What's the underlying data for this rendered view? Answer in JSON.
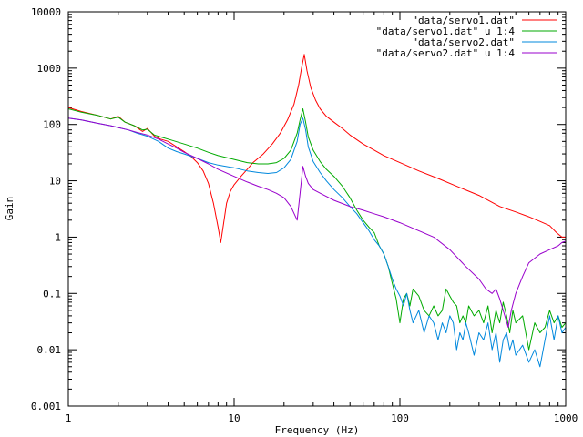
{
  "chart_data": {
    "type": "line",
    "title": "",
    "xlabel": "Frequency (Hz)",
    "ylabel": "Gain",
    "x_scale": "log",
    "y_scale": "log",
    "xlim": [
      1,
      1000
    ],
    "ylim": [
      0.001,
      10000
    ],
    "grid": false,
    "legend_position": "top-right",
    "x_ticks": [
      {
        "value": 1,
        "label": "1"
      },
      {
        "value": 10,
        "label": "10"
      },
      {
        "value": 100,
        "label": "100"
      },
      {
        "value": 1000,
        "label": "1000"
      }
    ],
    "y_ticks": [
      {
        "value": 0.001,
        "label": "0.001"
      },
      {
        "value": 0.01,
        "label": "0.01"
      },
      {
        "value": 0.1,
        "label": "0.1"
      },
      {
        "value": 1,
        "label": "1"
      },
      {
        "value": 10,
        "label": "10"
      },
      {
        "value": 100,
        "label": "100"
      },
      {
        "value": 1000,
        "label": "1000"
      },
      {
        "value": 10000,
        "label": "10000"
      }
    ],
    "series": [
      {
        "name": "\"data/servo1.dat\"",
        "color": "#ff0000",
        "points": [
          [
            1,
            200
          ],
          [
            1.2,
            170
          ],
          [
            1.5,
            145
          ],
          [
            1.8,
            125
          ],
          [
            2,
            140
          ],
          [
            2.2,
            110
          ],
          [
            2.5,
            95
          ],
          [
            2.8,
            75
          ],
          [
            3,
            85
          ],
          [
            3.3,
            62
          ],
          [
            3.6,
            55
          ],
          [
            4,
            50
          ],
          [
            4.5,
            40
          ],
          [
            5,
            33
          ],
          [
            5.5,
            27
          ],
          [
            6,
            21
          ],
          [
            6.5,
            15
          ],
          [
            7,
            9
          ],
          [
            7.5,
            4
          ],
          [
            8,
            1.5
          ],
          [
            8.3,
            0.8
          ],
          [
            8.6,
            1.6
          ],
          [
            9,
            4
          ],
          [
            9.5,
            6.5
          ],
          [
            10,
            8.5
          ],
          [
            11,
            12
          ],
          [
            12,
            16
          ],
          [
            13,
            21
          ],
          [
            15,
            30
          ],
          [
            17,
            45
          ],
          [
            19,
            70
          ],
          [
            21,
            120
          ],
          [
            23,
            230
          ],
          [
            24.5,
            500
          ],
          [
            25.5,
            1000
          ],
          [
            26.5,
            1750
          ],
          [
            27.5,
            900
          ],
          [
            29,
            450
          ],
          [
            31,
            270
          ],
          [
            33,
            190
          ],
          [
            36,
            140
          ],
          [
            40,
            110
          ],
          [
            45,
            85
          ],
          [
            50,
            65
          ],
          [
            60,
            45
          ],
          [
            70,
            35
          ],
          [
            80,
            28
          ],
          [
            100,
            21
          ],
          [
            130,
            15
          ],
          [
            170,
            11
          ],
          [
            220,
            8
          ],
          [
            300,
            5.5
          ],
          [
            400,
            3.5
          ],
          [
            500,
            2.8
          ],
          [
            600,
            2.3
          ],
          [
            700,
            1.9
          ],
          [
            800,
            1.6
          ],
          [
            880,
            1.2
          ],
          [
            950,
            1.0
          ],
          [
            1000,
            1.0
          ]
        ]
      },
      {
        "name": "\"data/servo1.dat\" u 1:4",
        "color": "#00aa00",
        "points": [
          [
            1,
            190
          ],
          [
            1.2,
            165
          ],
          [
            1.5,
            145
          ],
          [
            1.8,
            125
          ],
          [
            2,
            135
          ],
          [
            2.2,
            110
          ],
          [
            2.5,
            95
          ],
          [
            2.8,
            80
          ],
          [
            3,
            82
          ],
          [
            3.3,
            65
          ],
          [
            3.6,
            60
          ],
          [
            4,
            55
          ],
          [
            5,
            45
          ],
          [
            6,
            38
          ],
          [
            7,
            32
          ],
          [
            8,
            28
          ],
          [
            10,
            24
          ],
          [
            12,
            21
          ],
          [
            14,
            20
          ],
          [
            16,
            20
          ],
          [
            18,
            21
          ],
          [
            20,
            25
          ],
          [
            22,
            35
          ],
          [
            24,
            70
          ],
          [
            25,
            120
          ],
          [
            26,
            190
          ],
          [
            27,
            110
          ],
          [
            28,
            60
          ],
          [
            30,
            35
          ],
          [
            33,
            22
          ],
          [
            36,
            16
          ],
          [
            40,
            12
          ],
          [
            45,
            8
          ],
          [
            50,
            5
          ],
          [
            55,
            3
          ],
          [
            60,
            2
          ],
          [
            65,
            1.5
          ],
          [
            70,
            1.2
          ],
          [
            75,
            0.7
          ],
          [
            80,
            0.5
          ],
          [
            85,
            0.3
          ],
          [
            90,
            0.15
          ],
          [
            95,
            0.08
          ],
          [
            100,
            0.03
          ],
          [
            105,
            0.08
          ],
          [
            110,
            0.1
          ],
          [
            115,
            0.06
          ],
          [
            120,
            0.12
          ],
          [
            130,
            0.09
          ],
          [
            140,
            0.05
          ],
          [
            150,
            0.04
          ],
          [
            160,
            0.06
          ],
          [
            170,
            0.04
          ],
          [
            180,
            0.05
          ],
          [
            190,
            0.12
          ],
          [
            200,
            0.09
          ],
          [
            210,
            0.07
          ],
          [
            220,
            0.06
          ],
          [
            230,
            0.03
          ],
          [
            240,
            0.04
          ],
          [
            250,
            0.03
          ],
          [
            260,
            0.06
          ],
          [
            280,
            0.04
          ],
          [
            300,
            0.05
          ],
          [
            320,
            0.03
          ],
          [
            340,
            0.06
          ],
          [
            360,
            0.02
          ],
          [
            380,
            0.05
          ],
          [
            400,
            0.03
          ],
          [
            420,
            0.07
          ],
          [
            440,
            0.04
          ],
          [
            460,
            0.02
          ],
          [
            480,
            0.05
          ],
          [
            500,
            0.03
          ],
          [
            550,
            0.04
          ],
          [
            600,
            0.01
          ],
          [
            650,
            0.03
          ],
          [
            700,
            0.02
          ],
          [
            750,
            0.025
          ],
          [
            800,
            0.05
          ],
          [
            850,
            0.03
          ],
          [
            900,
            0.04
          ],
          [
            950,
            0.025
          ],
          [
            1000,
            0.03
          ]
        ]
      },
      {
        "name": "\"data/servo2.dat\"",
        "color": "#0088dd",
        "points": [
          [
            1,
            130
          ],
          [
            1.2,
            120
          ],
          [
            1.5,
            105
          ],
          [
            1.8,
            95
          ],
          [
            2,
            88
          ],
          [
            2.3,
            80
          ],
          [
            2.6,
            70
          ],
          [
            3,
            62
          ],
          [
            3.5,
            50
          ],
          [
            4,
            38
          ],
          [
            4.5,
            33
          ],
          [
            5,
            30
          ],
          [
            6,
            25
          ],
          [
            7,
            21
          ],
          [
            8,
            19
          ],
          [
            10,
            17
          ],
          [
            12,
            15
          ],
          [
            14,
            14
          ],
          [
            16,
            13.5
          ],
          [
            18,
            14
          ],
          [
            20,
            17
          ],
          [
            22,
            24
          ],
          [
            24,
            50
          ],
          [
            25,
            100
          ],
          [
            26,
            130
          ],
          [
            27,
            80
          ],
          [
            28,
            40
          ],
          [
            30,
            22
          ],
          [
            33,
            14
          ],
          [
            36,
            10
          ],
          [
            40,
            7
          ],
          [
            45,
            5
          ],
          [
            50,
            3.5
          ],
          [
            55,
            2.6
          ],
          [
            60,
            1.8
          ],
          [
            65,
            1.3
          ],
          [
            70,
            0.9
          ],
          [
            75,
            0.7
          ],
          [
            80,
            0.5
          ],
          [
            85,
            0.3
          ],
          [
            90,
            0.18
          ],
          [
            95,
            0.12
          ],
          [
            100,
            0.09
          ],
          [
            105,
            0.06
          ],
          [
            110,
            0.1
          ],
          [
            115,
            0.05
          ],
          [
            120,
            0.03
          ],
          [
            130,
            0.05
          ],
          [
            140,
            0.02
          ],
          [
            150,
            0.04
          ],
          [
            160,
            0.03
          ],
          [
            170,
            0.015
          ],
          [
            180,
            0.03
          ],
          [
            190,
            0.02
          ],
          [
            200,
            0.04
          ],
          [
            210,
            0.03
          ],
          [
            220,
            0.01
          ],
          [
            230,
            0.02
          ],
          [
            240,
            0.015
          ],
          [
            250,
            0.03
          ],
          [
            260,
            0.02
          ],
          [
            280,
            0.008
          ],
          [
            300,
            0.02
          ],
          [
            320,
            0.015
          ],
          [
            340,
            0.03
          ],
          [
            360,
            0.01
          ],
          [
            380,
            0.02
          ],
          [
            400,
            0.006
          ],
          [
            420,
            0.015
          ],
          [
            440,
            0.02
          ],
          [
            460,
            0.01
          ],
          [
            480,
            0.015
          ],
          [
            500,
            0.008
          ],
          [
            550,
            0.012
          ],
          [
            600,
            0.006
          ],
          [
            650,
            0.01
          ],
          [
            700,
            0.005
          ],
          [
            750,
            0.015
          ],
          [
            800,
            0.04
          ],
          [
            850,
            0.015
          ],
          [
            900,
            0.04
          ],
          [
            950,
            0.02
          ],
          [
            1000,
            0.025
          ]
        ]
      },
      {
        "name": "\"data/servo2.dat\" u 1:4",
        "color": "#9900cc",
        "points": [
          [
            1,
            130
          ],
          [
            1.2,
            120
          ],
          [
            1.5,
            105
          ],
          [
            1.8,
            95
          ],
          [
            2,
            88
          ],
          [
            2.3,
            80
          ],
          [
            2.6,
            72
          ],
          [
            3,
            65
          ],
          [
            3.5,
            55
          ],
          [
            4,
            45
          ],
          [
            4.5,
            38
          ],
          [
            5,
            32
          ],
          [
            6,
            25
          ],
          [
            7,
            20
          ],
          [
            8,
            16
          ],
          [
            10,
            12
          ],
          [
            12,
            9.5
          ],
          [
            14,
            8
          ],
          [
            16,
            7
          ],
          [
            18,
            6
          ],
          [
            20,
            5
          ],
          [
            22,
            3.5
          ],
          [
            24,
            2
          ],
          [
            25,
            6
          ],
          [
            26,
            18
          ],
          [
            27,
            12
          ],
          [
            28,
            9
          ],
          [
            30,
            7
          ],
          [
            35,
            5.5
          ],
          [
            40,
            4.5
          ],
          [
            50,
            3.5
          ],
          [
            60,
            3
          ],
          [
            70,
            2.6
          ],
          [
            80,
            2.3
          ],
          [
            100,
            1.8
          ],
          [
            130,
            1.3
          ],
          [
            160,
            1.0
          ],
          [
            200,
            0.6
          ],
          [
            250,
            0.3
          ],
          [
            300,
            0.18
          ],
          [
            330,
            0.12
          ],
          [
            360,
            0.1
          ],
          [
            380,
            0.12
          ],
          [
            400,
            0.08
          ],
          [
            420,
            0.05
          ],
          [
            450,
            0.025
          ],
          [
            470,
            0.05
          ],
          [
            500,
            0.1
          ],
          [
            550,
            0.2
          ],
          [
            600,
            0.35
          ],
          [
            700,
            0.5
          ],
          [
            800,
            0.6
          ],
          [
            900,
            0.7
          ],
          [
            950,
            0.8
          ],
          [
            1000,
            0.85
          ]
        ]
      }
    ]
  }
}
